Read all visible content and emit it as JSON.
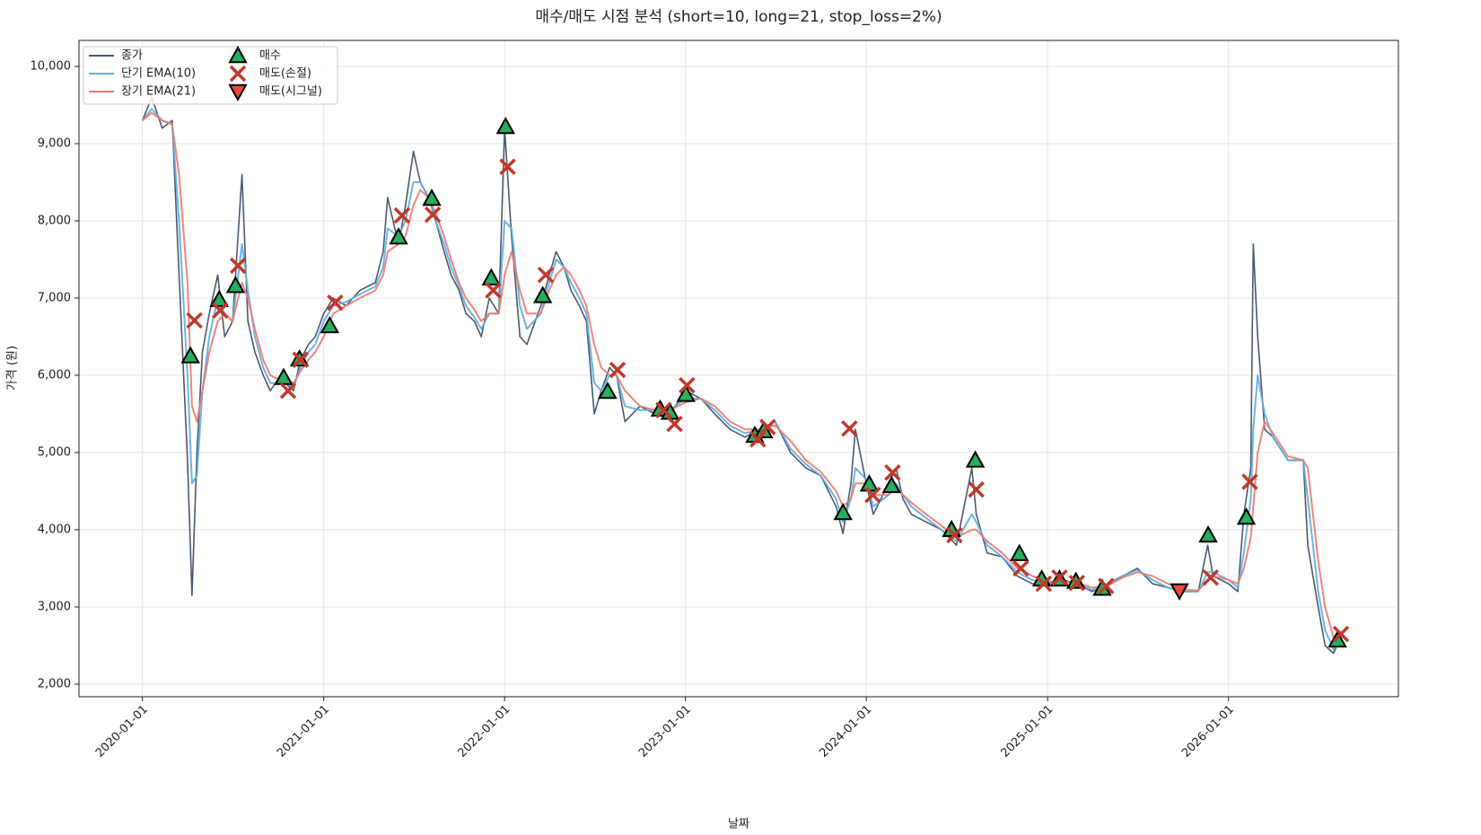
{
  "chart_data": {
    "type": "line",
    "title": "매수/매도 시점 분석 (short=10, long=21, stop_loss=2%)",
    "x_label": "날짜",
    "y_label": "가격 (원)",
    "xlim": [
      "2019-08-26",
      "2026-12-10"
    ],
    "xticks": [
      "2020-01-01",
      "2021-01-01",
      "2022-01-01",
      "2023-01-01",
      "2024-01-01",
      "2025-01-01",
      "2026-01-01"
    ],
    "ylim": [
      1837,
      10337
    ],
    "yticks": [
      {
        "value": 2000,
        "label": "2,000"
      },
      {
        "value": 3000,
        "label": "3,000"
      },
      {
        "value": 4000,
        "label": "4,000"
      },
      {
        "value": 5000,
        "label": "5,000"
      },
      {
        "value": 6000,
        "label": "6,000"
      },
      {
        "value": 7000,
        "label": "7,000"
      },
      {
        "value": 8000,
        "label": "8,000"
      },
      {
        "value": 9000,
        "label": "9,000"
      },
      {
        "value": 10000,
        "label": "10,000"
      }
    ],
    "grid": true,
    "legend": "upper left",
    "x": [
      "2020-01-01",
      "2020-01-20",
      "2020-02-10",
      "2020-03-01",
      "2020-03-15",
      "2020-04-01",
      "2020-04-10",
      "2020-04-20",
      "2020-05-01",
      "2020-05-15",
      "2020-06-01",
      "2020-06-15",
      "2020-07-01",
      "2020-07-20",
      "2020-08-01",
      "2020-08-15",
      "2020-09-01",
      "2020-09-15",
      "2020-10-01",
      "2020-10-15",
      "2020-11-01",
      "2020-11-15",
      "2020-12-01",
      "2020-12-15",
      "2021-01-01",
      "2021-01-20",
      "2021-02-15",
      "2021-03-15",
      "2021-04-15",
      "2021-05-01",
      "2021-05-10",
      "2021-06-01",
      "2021-06-15",
      "2021-07-01",
      "2021-07-15",
      "2021-08-01",
      "2021-08-15",
      "2021-09-01",
      "2021-09-15",
      "2021-10-01",
      "2021-10-15",
      "2021-11-01",
      "2021-11-15",
      "2021-12-01",
      "2021-12-20",
      "2022-01-01",
      "2022-01-15",
      "2022-02-01",
      "2022-02-15",
      "2022-03-15",
      "2022-04-01",
      "2022-04-15",
      "2022-05-01",
      "2022-05-15",
      "2022-06-01",
      "2022-06-15",
      "2022-07-01",
      "2022-07-15",
      "2022-08-01",
      "2022-08-15",
      "2022-09-01",
      "2022-10-01",
      "2022-11-01",
      "2022-12-01",
      "2023-01-01",
      "2023-02-01",
      "2023-03-01",
      "2023-04-01",
      "2023-05-01",
      "2023-06-01",
      "2023-07-01",
      "2023-08-01",
      "2023-09-01",
      "2023-10-01",
      "2023-11-01",
      "2023-11-15",
      "2023-12-01",
      "2023-12-10",
      "2024-01-01",
      "2024-01-15",
      "2024-02-15",
      "2024-03-01",
      "2024-03-15",
      "2024-04-01",
      "2024-05-01",
      "2024-06-01",
      "2024-07-01",
      "2024-08-01",
      "2024-08-10",
      "2024-09-01",
      "2024-10-01",
      "2024-11-01",
      "2024-12-01",
      "2025-01-01",
      "2025-02-01",
      "2025-03-01",
      "2025-04-01",
      "2025-05-01",
      "2025-06-01",
      "2025-07-01",
      "2025-08-01",
      "2025-09-01",
      "2025-10-01",
      "2025-11-01",
      "2025-11-20",
      "2025-12-01",
      "2026-01-01",
      "2026-01-20",
      "2026-02-01",
      "2026-02-15",
      "2026-02-20",
      "2026-03-01",
      "2026-03-15",
      "2026-04-01",
      "2026-05-01",
      "2026-06-01",
      "2026-06-10",
      "2026-07-01",
      "2026-07-15",
      "2026-08-01",
      "2026-08-15"
    ],
    "series": [
      {
        "name": "종가",
        "color": "#4a5a70",
        "width": 1.6,
        "values": [
          9300,
          9600,
          9200,
          9300,
          7300,
          4900,
          3150,
          5000,
          6300,
          6800,
          7300,
          6500,
          6700,
          8600,
          6700,
          6300,
          6000,
          5800,
          5950,
          5900,
          5800,
          6200,
          6400,
          6500,
          6800,
          7000,
          6900,
          7100,
          7200,
          7600,
          8300,
          7700,
          8200,
          8900,
          8500,
          8300,
          8000,
          7600,
          7300,
          7100,
          6800,
          6700,
          6500,
          7000,
          6800,
          9200,
          7800,
          6500,
          6400,
          6900,
          7300,
          7600,
          7400,
          7100,
          6900,
          6700,
          5500,
          5800,
          6100,
          6000,
          5400,
          5600,
          5500,
          5500,
          5800,
          5700,
          5500,
          5300,
          5200,
          5300,
          5400,
          5000,
          4800,
          4700,
          4300,
          3950,
          4600,
          5300,
          4600,
          4200,
          4600,
          4800,
          4400,
          4200,
          4100,
          4000,
          3800,
          4800,
          4200,
          3700,
          3650,
          3400,
          3300,
          3300,
          3350,
          3300,
          3200,
          3300,
          3400,
          3500,
          3300,
          3250,
          3200,
          3200,
          3800,
          3400,
          3300,
          3200,
          4200,
          4800,
          7700,
          6500,
          5300,
          5200,
          4900,
          4900,
          3800,
          3000,
          2500,
          2400,
          2600
        ]
      },
      {
        "name": "단기 EMA(10)",
        "color": "#5dade2",
        "width": 2,
        "values": [
          9300,
          9450,
          9300,
          9250,
          8000,
          6000,
          4600,
          4700,
          5800,
          6500,
          7000,
          6800,
          6700,
          7700,
          7100,
          6500,
          6100,
          5900,
          5900,
          5900,
          5850,
          6100,
          6300,
          6400,
          6700,
          6900,
          6950,
          7050,
          7150,
          7400,
          7900,
          7800,
          8000,
          8500,
          8500,
          8300,
          8000,
          7700,
          7400,
          7150,
          6900,
          6750,
          6600,
          6800,
          6800,
          8000,
          7900,
          6900,
          6600,
          6800,
          7200,
          7500,
          7400,
          7200,
          7000,
          6800,
          5900,
          5800,
          6000,
          6000,
          5600,
          5550,
          5550,
          5550,
          5700,
          5700,
          5550,
          5350,
          5250,
          5300,
          5400,
          5050,
          4850,
          4700,
          4400,
          4100,
          4400,
          4800,
          4650,
          4300,
          4450,
          4600,
          4450,
          4300,
          4150,
          4000,
          3850,
          4200,
          4100,
          3800,
          3650,
          3450,
          3350,
          3300,
          3330,
          3300,
          3220,
          3280,
          3400,
          3480,
          3350,
          3250,
          3200,
          3200,
          3450,
          3450,
          3350,
          3250,
          3700,
          4400,
          5300,
          6000,
          5500,
          5200,
          4900,
          4900,
          4400,
          3200,
          2700,
          2450,
          2550
        ]
      },
      {
        "name": "장기 EMA(21)",
        "color": "#f1786a",
        "width": 2,
        "values": [
          9300,
          9400,
          9300,
          9250,
          8600,
          7200,
          5600,
          5400,
          5800,
          6300,
          6700,
          6800,
          6700,
          7200,
          7000,
          6600,
          6200,
          6000,
          5950,
          5950,
          5900,
          6050,
          6200,
          6300,
          6500,
          6800,
          6900,
          7000,
          7100,
          7300,
          7600,
          7700,
          7800,
          8200,
          8400,
          8300,
          8100,
          7800,
          7500,
          7200,
          7000,
          6850,
          6700,
          6800,
          6800,
          7300,
          7600,
          7100,
          6800,
          6800,
          7100,
          7300,
          7400,
          7300,
          7100,
          6900,
          6400,
          6100,
          6000,
          6000,
          5800,
          5600,
          5550,
          5550,
          5650,
          5700,
          5600,
          5400,
          5300,
          5300,
          5350,
          5150,
          4900,
          4750,
          4500,
          4300,
          4400,
          4600,
          4600,
          4450,
          4450,
          4550,
          4450,
          4350,
          4200,
          4050,
          3900,
          4000,
          4000,
          3850,
          3700,
          3500,
          3400,
          3330,
          3330,
          3310,
          3250,
          3270,
          3380,
          3450,
          3400,
          3300,
          3230,
          3210,
          3350,
          3400,
          3350,
          3300,
          3500,
          3900,
          4300,
          5000,
          5400,
          5250,
          4950,
          4900,
          4800,
          3600,
          3000,
          2600,
          2500
        ]
      }
    ],
    "markers": [
      {
        "name": "매수",
        "color": "#27ae60",
        "marker": "^",
        "x": [
          "2020-04-07",
          "2020-06-04",
          "2020-07-07",
          "2020-10-12",
          "2020-11-13",
          "2021-01-13",
          "2021-06-01",
          "2021-08-07",
          "2021-12-05",
          "2022-01-03",
          "2022-03-19",
          "2022-07-28",
          "2022-11-11",
          "2022-12-01",
          "2023-01-02",
          "2023-05-21",
          "2023-06-08",
          "2023-11-15",
          "2024-01-07",
          "2024-02-21",
          "2024-06-21",
          "2024-08-08",
          "2024-11-05",
          "2024-12-20",
          "2025-01-25",
          "2025-02-27",
          "2025-04-21",
          "2025-11-21",
          "2026-02-06",
          "2026-08-09"
        ],
        "values": [
          6250,
          6980,
          7160,
          5970,
          6210,
          6640,
          7790,
          8290,
          7260,
          9220,
          7030,
          5790,
          5560,
          5520,
          5750,
          5220,
          5280,
          4220,
          4590,
          4570,
          4000,
          4900,
          3690,
          3360,
          3360,
          3330,
          3240,
          3930,
          4160,
          2570
        ]
      },
      {
        "name": "매도(손절)",
        "color": "#c0392b",
        "marker": "x",
        "x": [
          "2020-04-15",
          "2020-06-06",
          "2020-07-12",
          "2020-10-21",
          "2020-11-15",
          "2021-01-24",
          "2021-06-08",
          "2021-08-09",
          "2021-12-09",
          "2022-01-07",
          "2022-03-25",
          "2022-08-17",
          "2022-11-18",
          "2022-12-10",
          "2023-01-04",
          "2023-05-27",
          "2023-06-16",
          "2023-11-28",
          "2024-01-14",
          "2024-02-23",
          "2024-06-27",
          "2024-08-10",
          "2024-11-08",
          "2024-12-24",
          "2025-01-25",
          "2025-03-01",
          "2025-04-29",
          "2025-11-26",
          "2026-02-13",
          "2026-08-16"
        ],
        "values": [
          6710,
          6840,
          7420,
          5800,
          6200,
          6940,
          8070,
          8080,
          7100,
          8700,
          7300,
          6070,
          5550,
          5370,
          5870,
          5170,
          5330,
          5310,
          4450,
          4740,
          3930,
          4520,
          3500,
          3300,
          3380,
          3310,
          3270,
          3380,
          4620,
          2650
        ]
      },
      {
        "name": "매도(시그널)",
        "color": "#e74c3c",
        "marker": "v",
        "x": [
          "2025-09-24"
        ],
        "values": [
          3210
        ]
      }
    ]
  }
}
